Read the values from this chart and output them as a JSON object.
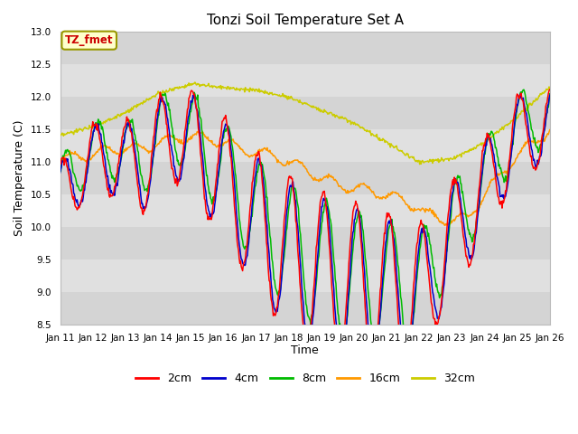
{
  "title": "Tonzi Soil Temperature Set A",
  "xlabel": "Time",
  "ylabel": "Soil Temperature (C)",
  "ylim": [
    8.5,
    13.0
  ],
  "yticks": [
    8.5,
    9.0,
    9.5,
    10.0,
    10.5,
    11.0,
    11.5,
    12.0,
    12.5,
    13.0
  ],
  "series_colors": [
    "#ff0000",
    "#0000cc",
    "#00bb00",
    "#ff9900",
    "#cccc00"
  ],
  "series_labels": [
    "2cm",
    "4cm",
    "8cm",
    "16cm",
    "32cm"
  ],
  "annotation_text": "TZ_fmet",
  "annotation_color": "#cc0000",
  "annotation_bg": "#ffffcc",
  "annotation_border": "#999900",
  "band_colors": [
    "#d4d4d4",
    "#e0e0e0"
  ],
  "n_points": 720,
  "xtick_days": [
    11,
    12,
    13,
    14,
    15,
    16,
    17,
    18,
    19,
    20,
    21,
    22,
    23,
    24,
    25,
    26
  ]
}
